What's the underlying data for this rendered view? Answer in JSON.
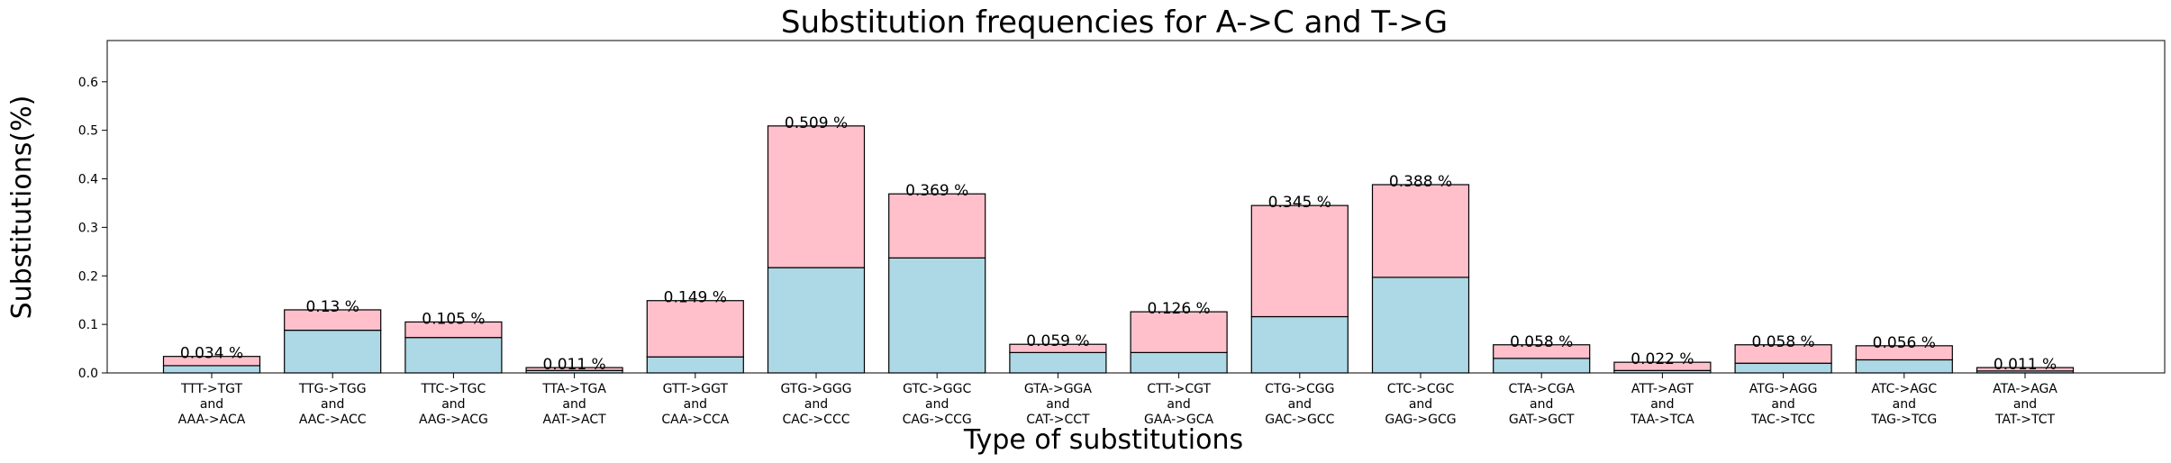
{
  "chart_data": {
    "type": "bar",
    "stacked": true,
    "title": "Substitution frequencies for A->C and T->G",
    "xlabel": "Type of substitutions",
    "ylabel": "Substitutions(%)",
    "ylim": [
      0,
      0.685
    ],
    "yticks": [
      "0.0",
      "0.1",
      "0.2",
      "0.3",
      "0.4",
      "0.5",
      "0.6"
    ],
    "ytick_values": [
      0,
      0.1,
      0.2,
      0.3,
      0.4,
      0.5,
      0.6
    ],
    "grid": false,
    "categories": [
      [
        "TTT->TGT",
        "and",
        "AAA->ACA"
      ],
      [
        "TTG->TGG",
        "and",
        "AAC->ACC"
      ],
      [
        "TTC->TGC",
        "and",
        "AAG->ACG"
      ],
      [
        "TTA->TGA",
        "and",
        "AAT->ACT"
      ],
      [
        "GTT->GGT",
        "and",
        "CAA->CCA"
      ],
      [
        "GTG->GGG",
        "and",
        "CAC->CCC"
      ],
      [
        "GTC->GGC",
        "and",
        "CAG->CCG"
      ],
      [
        "GTA->GGA",
        "and",
        "CAT->CCT"
      ],
      [
        "CTT->CGT",
        "and",
        "GAA->GCA"
      ],
      [
        "CTG->CGG",
        "and",
        "GAC->GCC"
      ],
      [
        "CTC->CGC",
        "and",
        "GAG->GCG"
      ],
      [
        "CTA->CGA",
        "and",
        "GAT->GCT"
      ],
      [
        "ATT->AGT",
        "and",
        "TAA->TCA"
      ],
      [
        "ATG->AGG",
        "and",
        "TAC->TCC"
      ],
      [
        "ATC->AGC",
        "and",
        "TAG->TCG"
      ],
      [
        "ATA->AGA",
        "and",
        "TAT->TCT"
      ]
    ],
    "series": [
      {
        "color": "#add8e6",
        "values": [
          0.015,
          0.088,
          0.073,
          0.005,
          0.033,
          0.217,
          0.237,
          0.042,
          0.042,
          0.116,
          0.197,
          0.03,
          0.005,
          0.02,
          0.027,
          0.004
        ]
      },
      {
        "color": "#ffc0cb",
        "values": [
          0.019,
          0.042,
          0.032,
          0.006,
          0.116,
          0.292,
          0.132,
          0.017,
          0.084,
          0.229,
          0.191,
          0.028,
          0.017,
          0.038,
          0.029,
          0.007
        ]
      }
    ],
    "totals": [
      0.034,
      0.13,
      0.105,
      0.011,
      0.149,
      0.509,
      0.369,
      0.059,
      0.126,
      0.345,
      0.388,
      0.058,
      0.022,
      0.058,
      0.056,
      0.011
    ],
    "data_labels": [
      "0.034 %",
      "0.13 %",
      "0.105 %",
      "0.011 %",
      "0.149 %",
      "0.509 %",
      "0.369 %",
      "0.059 %",
      "0.126 %",
      "0.345 %",
      "0.388 %",
      "0.058 %",
      "0.022 %",
      "0.058 %",
      "0.056 %",
      "0.011 %"
    ]
  }
}
